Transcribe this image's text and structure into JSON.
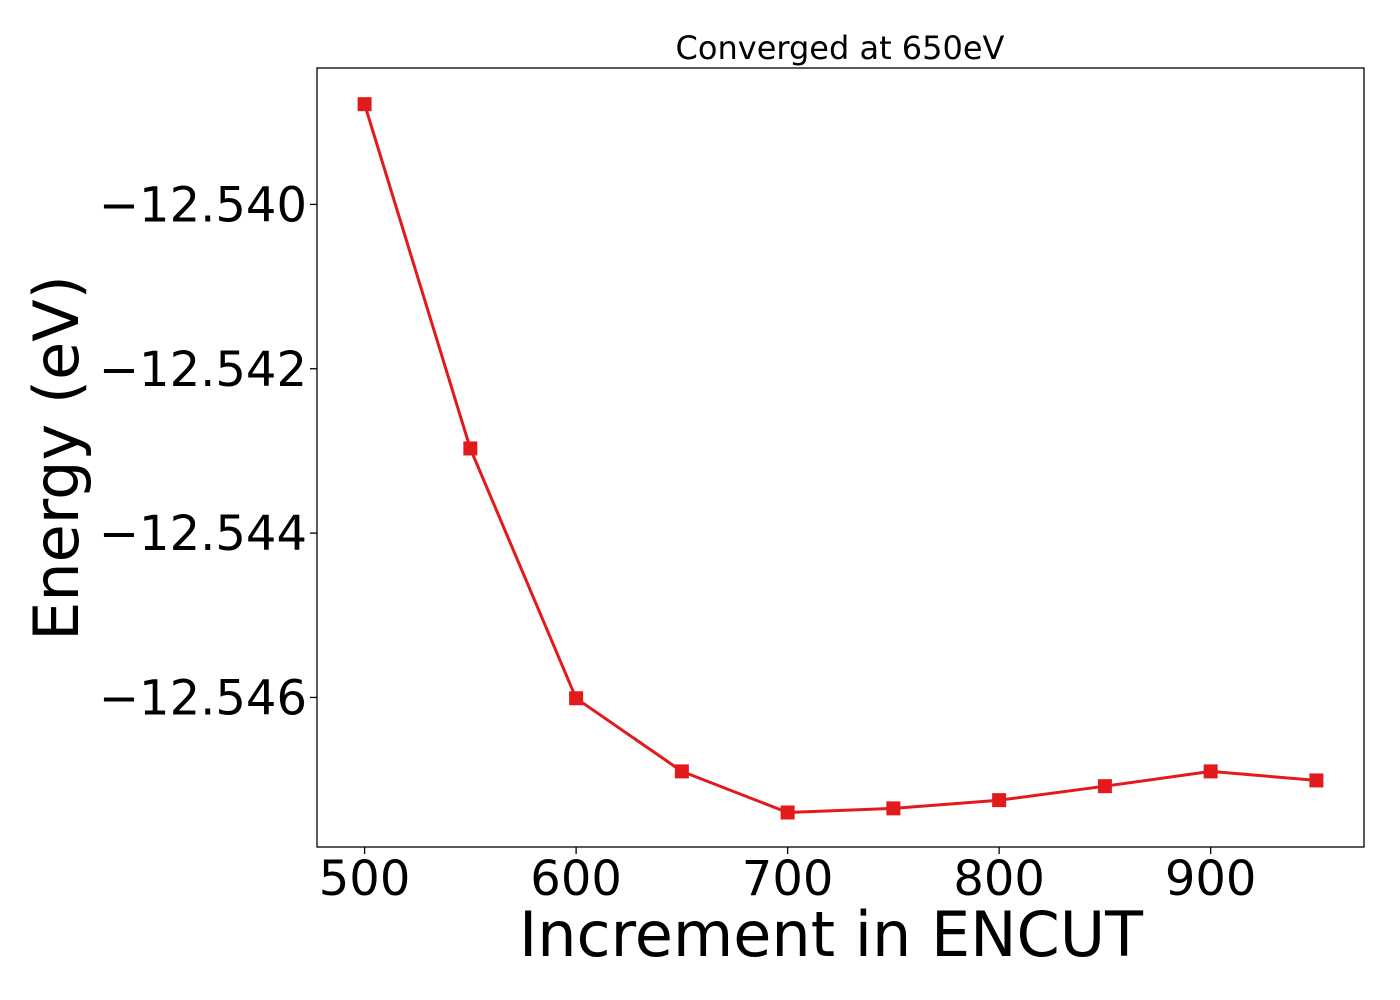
{
  "chart_data": {
    "type": "line",
    "title": "Converged at 650eV",
    "xlabel": "Increment in ENCUT",
    "ylabel": "Energy (eV)",
    "x": [
      500,
      550,
      600,
      650,
      700,
      750,
      800,
      850,
      900,
      950
    ],
    "series": [
      {
        "values": [
          -12.53878,
          -12.54297,
          -12.54601,
          -12.5469,
          -12.5474,
          -12.54735,
          -12.54725,
          -12.54708,
          -12.5469,
          -12.54701
        ]
      }
    ],
    "xlim": [
      477.5,
      972.5
    ],
    "ylim": [
      -12.54782,
      -12.53834
    ],
    "x_ticks": [
      "500",
      "600",
      "700",
      "800",
      "900"
    ],
    "x_tick_values": [
      500,
      600,
      700,
      800,
      900
    ],
    "y_ticks": [
      "−12.540",
      "−12.542",
      "−12.544",
      "−12.546"
    ],
    "y_tick_values": [
      -12.54,
      -12.542,
      -12.544,
      -12.546
    ],
    "grid": false,
    "line_color": "#e31a1c",
    "marker": "square"
  }
}
